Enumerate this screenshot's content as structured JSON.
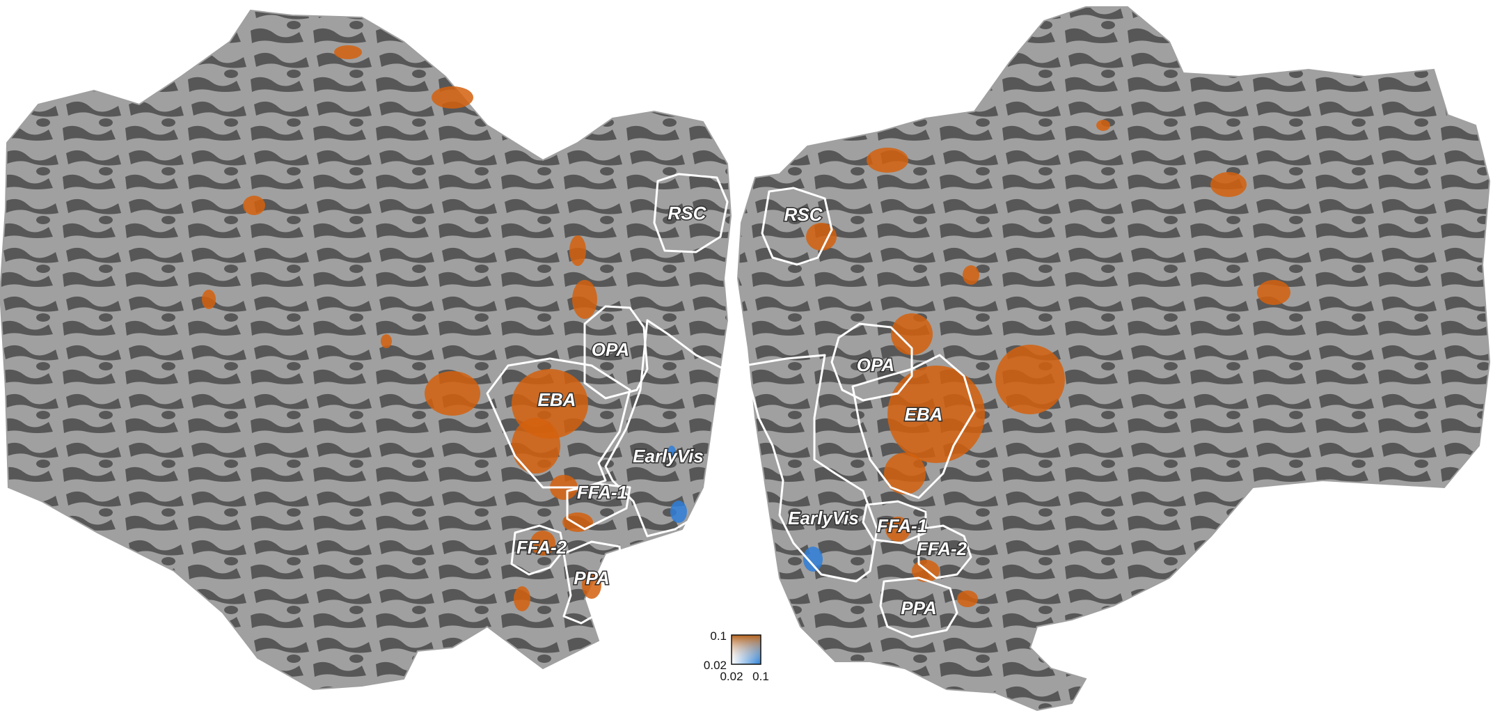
{
  "figure": {
    "colors": {
      "background": "#ffffff",
      "sulci": "#575757",
      "gyri": "#a0a0a0",
      "activation_orange": "#d4600e",
      "activation_blue": "#2f7ed8",
      "roi_outline": "#ffffff"
    },
    "left_hemisphere": {
      "roi_labels": {
        "rsc": "RSC",
        "opa": "OPA",
        "eba": "EBA",
        "earlyvis": "EarlyVis",
        "ffa1": "FFA-1",
        "ffa2": "FFA-2",
        "ppa": "PPA"
      }
    },
    "right_hemisphere": {
      "roi_labels": {
        "rsc": "RSC",
        "opa": "OPA",
        "eba": "EBA",
        "earlyvis": "EarlyVis",
        "ffa1": "FFA-1",
        "ffa2": "FFA-2",
        "ppa": "PPA"
      }
    },
    "colorbar": {
      "type": "2D colormap",
      "y_top": "0.1",
      "y_bottom": "0.02",
      "x_left": "0.02",
      "x_right": "0.1",
      "color_high_y": "#b8641c",
      "color_high_x": "#2a7fd6",
      "color_low": "#ffffff"
    }
  }
}
